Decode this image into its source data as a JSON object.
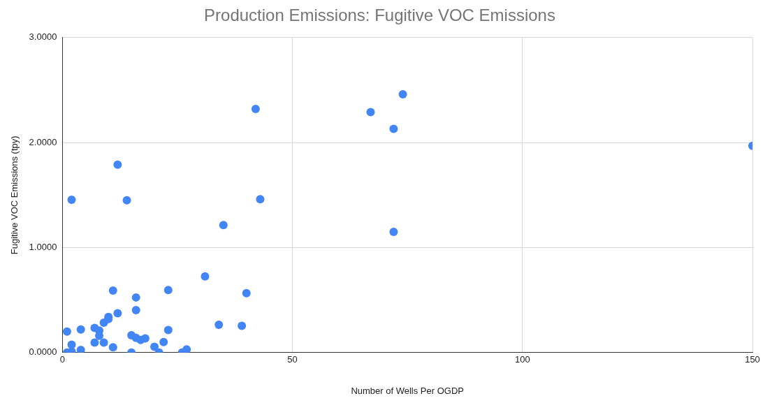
{
  "chart_data": {
    "type": "scatter",
    "title": "Production Emissions: Fugitive VOC Emissions",
    "xlabel": "Number of Wells Per OGDP",
    "ylabel": "Fugitive VOC Emissions (tpy)",
    "x": [
      1,
      2,
      1,
      2,
      4,
      4,
      7,
      7,
      8,
      8,
      9,
      9,
      10,
      10,
      11,
      11,
      12,
      15,
      15,
      16,
      16,
      16,
      17,
      18,
      20,
      21,
      22,
      23,
      23,
      26,
      27,
      31,
      34,
      39,
      40,
      2,
      12,
      14,
      35,
      43,
      42,
      67,
      74,
      72,
      72,
      150
    ],
    "series": [
      {
        "color": "#4285f4",
        "values": [
          0.2,
          0.075,
          0,
          0.01,
          0.22,
          0.025,
          0.235,
          0.095,
          0.21,
          0.16,
          0.095,
          0.285,
          0.34,
          0.32,
          0.59,
          0.05,
          0.375,
          0.165,
          0,
          0.525,
          0.405,
          0.14,
          0.12,
          0.135,
          0.055,
          0,
          0.1,
          0.595,
          0.215,
          0,
          0.03,
          0.725,
          0.265,
          0.255,
          0.565,
          1.455,
          1.79,
          1.45,
          1.215,
          1.46,
          2.32,
          2.29,
          2.46,
          2.13,
          1.15,
          1.97
        ]
      }
    ],
    "xlim": [
      0,
      150
    ],
    "xticks": [
      0,
      50,
      100,
      150
    ],
    "ylim": [
      0,
      3
    ],
    "yticks": [
      {
        "value": 0,
        "label": "0.0000"
      },
      {
        "value": 1,
        "label": "1.0000"
      },
      {
        "value": 2,
        "label": "2.0000"
      },
      {
        "value": 3,
        "label": "3.0000"
      }
    ],
    "grid": true,
    "legend": false,
    "marker": "circle"
  }
}
